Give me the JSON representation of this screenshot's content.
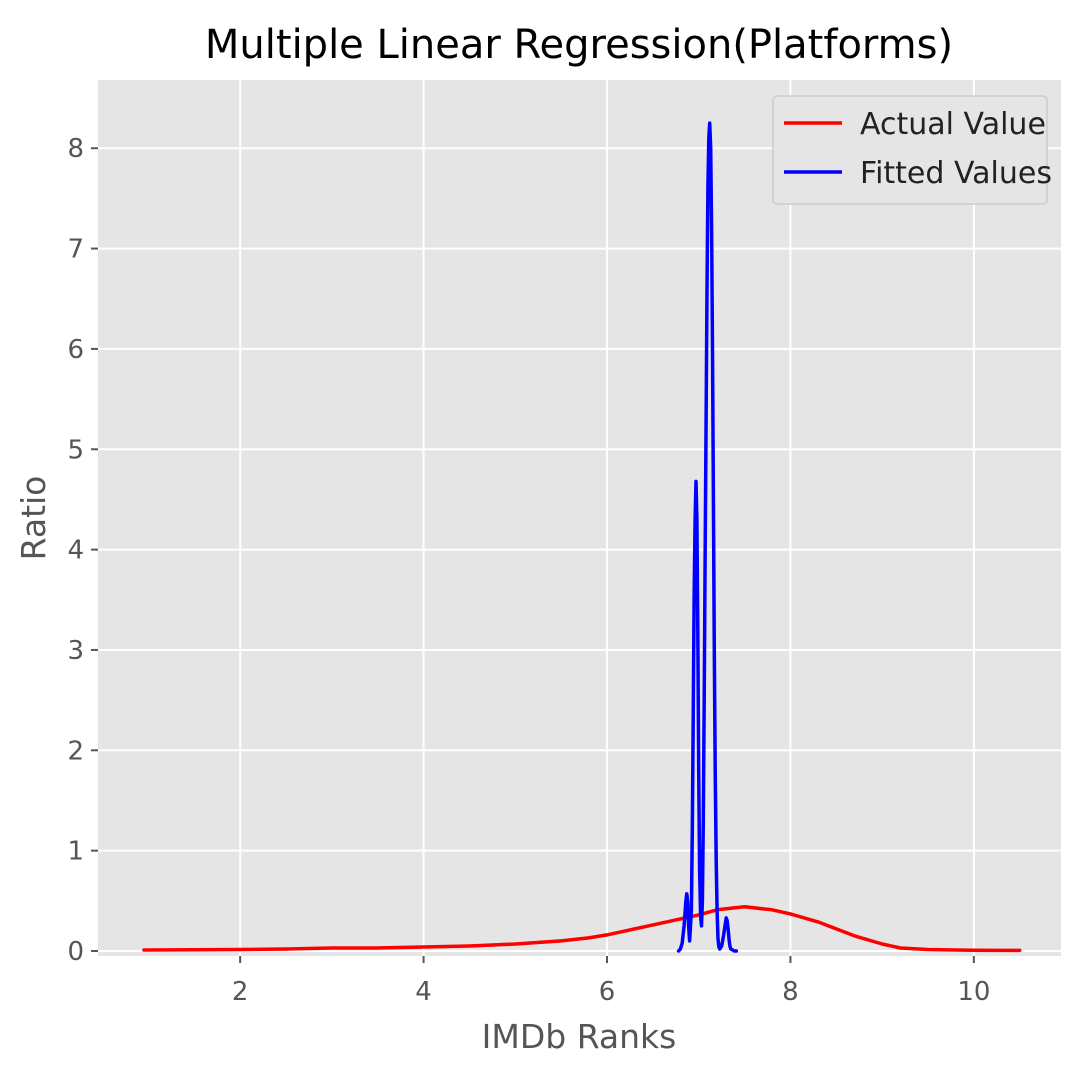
{
  "chart_data": {
    "type": "line",
    "title": "Multiple Linear Regression(Platforms)",
    "xlabel": "IMDb Ranks",
    "ylabel": "Ratio",
    "xlim": [
      0.45,
      10.95
    ],
    "ylim": [
      -0.05,
      8.68
    ],
    "xticks": [
      2,
      4,
      6,
      8,
      10
    ],
    "yticks": [
      0,
      1,
      2,
      3,
      4,
      5,
      6,
      7,
      8
    ],
    "grid": true,
    "legend_position": "top-right",
    "series": [
      {
        "name": "Actual Value",
        "color": "#ff0000",
        "x": [
          0.95,
          1.5,
          2.0,
          2.5,
          3.0,
          3.5,
          4.0,
          4.5,
          5.0,
          5.5,
          5.8,
          6.0,
          6.2,
          6.5,
          6.8,
          7.0,
          7.2,
          7.5,
          7.8,
          8.0,
          8.3,
          8.5,
          8.7,
          9.0,
          9.2,
          9.5,
          9.8,
          10.0,
          10.25,
          10.5
        ],
        "y": [
          0.01,
          0.012,
          0.015,
          0.02,
          0.03,
          0.03,
          0.04,
          0.05,
          0.07,
          0.1,
          0.13,
          0.16,
          0.2,
          0.26,
          0.32,
          0.36,
          0.41,
          0.44,
          0.41,
          0.37,
          0.29,
          0.22,
          0.15,
          0.07,
          0.03,
          0.015,
          0.01,
          0.008,
          0.006,
          0.006
        ]
      },
      {
        "name": "Fitted Values",
        "color": "#0000ff",
        "x": [
          6.78,
          6.8,
          6.82,
          6.84,
          6.86,
          6.87,
          6.88,
          6.89,
          6.9,
          6.92,
          6.93,
          6.94,
          6.95,
          6.96,
          6.97,
          6.98,
          6.99,
          7.0,
          7.01,
          7.02,
          7.03,
          7.04,
          7.05,
          7.06,
          7.07,
          7.08,
          7.09,
          7.1,
          7.11,
          7.12,
          7.13,
          7.14,
          7.15,
          7.16,
          7.17,
          7.18,
          7.19,
          7.2,
          7.21,
          7.22,
          7.23,
          7.25,
          7.27,
          7.29,
          7.3,
          7.31,
          7.32,
          7.33,
          7.34,
          7.35,
          7.37,
          7.39,
          7.41
        ],
        "y": [
          0.0,
          0.02,
          0.08,
          0.25,
          0.5,
          0.57,
          0.48,
          0.25,
          0.1,
          0.4,
          1.2,
          2.3,
          3.5,
          4.3,
          4.68,
          4.3,
          3.2,
          1.8,
          0.8,
          0.35,
          0.25,
          0.5,
          1.3,
          2.5,
          3.9,
          5.3,
          6.6,
          7.6,
          8.1,
          8.25,
          8.0,
          7.2,
          6.0,
          4.5,
          3.0,
          1.8,
          0.9,
          0.4,
          0.12,
          0.04,
          0.02,
          0.05,
          0.15,
          0.27,
          0.33,
          0.3,
          0.22,
          0.12,
          0.05,
          0.02,
          0.01,
          0.0,
          0.0
        ]
      }
    ]
  }
}
